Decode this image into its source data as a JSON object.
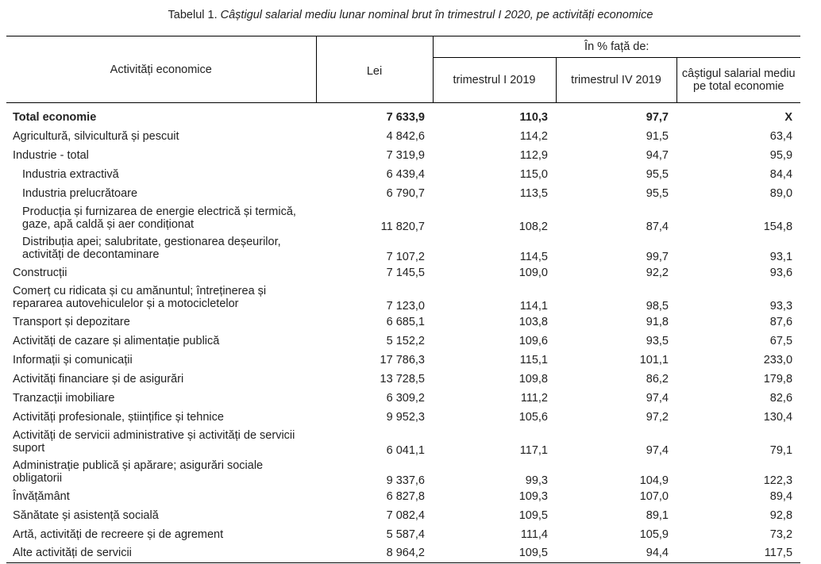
{
  "caption": {
    "prefix": "Tabelul 1. ",
    "title": "Câștigul salarial mediu lunar nominal brut în trimestrul I 2020, pe activități economice"
  },
  "table": {
    "headers": {
      "activity": "Activități economice",
      "lei": "Lei",
      "pct_group": "În % față de:",
      "q1_2019": "trimestrul I 2019",
      "q4_2019": "trimestrul IV 2019",
      "avg_total": "câștigul salarial mediu pe total economie"
    },
    "rows": [
      {
        "name": "Total economie",
        "lei": "7 633,9",
        "q1": "110,3",
        "q4": "97,7",
        "avg": "X"
      },
      {
        "name": "Agricultură, silvicultură și pescuit",
        "lei": "4 842,6",
        "q1": "114,2",
        "q4": "91,5",
        "avg": "63,4"
      },
      {
        "name": "Industrie - total",
        "lei": "7 319,9",
        "q1": "112,9",
        "q4": "94,7",
        "avg": "95,9"
      },
      {
        "name": "Industria extractivă",
        "lei": "6 439,4",
        "q1": "115,0",
        "q4": "95,5",
        "avg": "84,4"
      },
      {
        "name": "Industria prelucrătoare",
        "lei": "6 790,7",
        "q1": "113,5",
        "q4": "95,5",
        "avg": "89,0"
      },
      {
        "name": "Producția și furnizarea de energie electrică și termică, gaze, apă caldă și aer condiționat",
        "lei": "11 820,7",
        "q1": "108,2",
        "q4": "87,4",
        "avg": "154,8"
      },
      {
        "name": "Distribuția apei; salubritate, gestionarea deșeurilor, activități de decontaminare",
        "lei": "7 107,2",
        "q1": "114,5",
        "q4": "99,7",
        "avg": "93,1"
      },
      {
        "name": "Construcții",
        "lei": "7 145,5",
        "q1": "109,0",
        "q4": "92,2",
        "avg": "93,6"
      },
      {
        "name": "Comerț cu ridicata și cu amănuntul; întreținerea și repararea autovehiculelor și a motocicletelor",
        "lei": "7 123,0",
        "q1": "114,1",
        "q4": "98,5",
        "avg": "93,3"
      },
      {
        "name": "Transport și depozitare",
        "lei": "6 685,1",
        "q1": "103,8",
        "q4": "91,8",
        "avg": "87,6"
      },
      {
        "name": "Activități de cazare și alimentație publică",
        "lei": "5 152,2",
        "q1": "109,6",
        "q4": "93,5",
        "avg": "67,5"
      },
      {
        "name": "Informații și comunicații",
        "lei": "17 786,3",
        "q1": "115,1",
        "q4": "101,1",
        "avg": "233,0"
      },
      {
        "name": "Activități financiare și de asigurări",
        "lei": "13 728,5",
        "q1": "109,8",
        "q4": "86,2",
        "avg": "179,8"
      },
      {
        "name": "Tranzacții imobiliare",
        "lei": "6 309,2",
        "q1": "111,2",
        "q4": "97,4",
        "avg": "82,6"
      },
      {
        "name": "Activități profesionale, științifice și tehnice",
        "lei": "9 952,3",
        "q1": "105,6",
        "q4": "97,2",
        "avg": "130,4"
      },
      {
        "name": "Activități de servicii administrative și activități de servicii suport",
        "lei": "6 041,1",
        "q1": "117,1",
        "q4": "97,4",
        "avg": "79,1"
      },
      {
        "name": "Administrație publică și apărare; asigurări sociale obligatorii",
        "lei": "9 337,6",
        "q1": "99,3",
        "q4": "104,9",
        "avg": "122,3"
      },
      {
        "name": "Învățământ",
        "lei": "6 827,8",
        "q1": "109,3",
        "q4": "107,0",
        "avg": "89,4"
      },
      {
        "name": "Sănătate și asistență socială",
        "lei": "7 082,4",
        "q1": "109,5",
        "q4": "89,1",
        "avg": "92,8"
      },
      {
        "name": "Artă, activități de recreere și de agrement",
        "lei": "5 587,4",
        "q1": "111,4",
        "q4": "105,9",
        "avg": "73,2"
      },
      {
        "name": "Alte activități de servicii",
        "lei": "8 964,2",
        "q1": "109,5",
        "q4": "94,4",
        "avg": "117,5"
      }
    ]
  }
}
